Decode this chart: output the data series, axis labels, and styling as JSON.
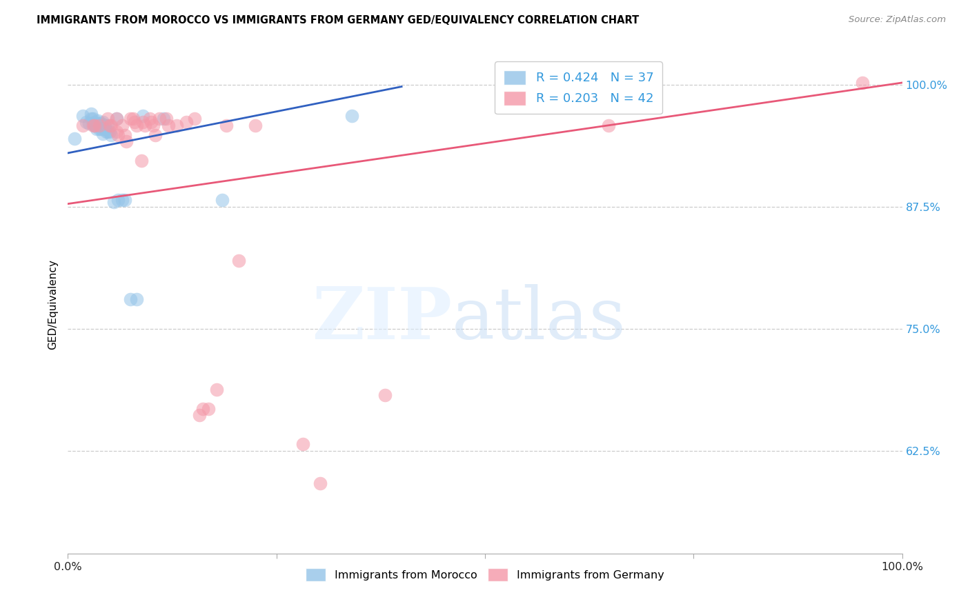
{
  "title": "IMMIGRANTS FROM MOROCCO VS IMMIGRANTS FROM GERMANY GED/EQUIVALENCY CORRELATION CHART",
  "source": "Source: ZipAtlas.com",
  "ylabel": "GED/Equivalency",
  "xlim": [
    0.0,
    1.0
  ],
  "ylim": [
    0.52,
    1.03
  ],
  "y_ticks": [
    0.625,
    0.75,
    0.875,
    1.0
  ],
  "y_tick_labels": [
    "62.5%",
    "75.0%",
    "87.5%",
    "100.0%"
  ],
  "legend": {
    "morocco_r": "0.424",
    "morocco_n": "37",
    "germany_r": "0.203",
    "germany_n": "42"
  },
  "morocco_color": "#94c4e8",
  "germany_color": "#f498a8",
  "morocco_line_color": "#3060c0",
  "germany_line_color": "#e85878",
  "morocco_x": [
    0.008,
    0.018,
    0.022,
    0.025,
    0.028,
    0.028,
    0.03,
    0.03,
    0.032,
    0.032,
    0.033,
    0.034,
    0.036,
    0.038,
    0.038,
    0.04,
    0.04,
    0.042,
    0.042,
    0.044,
    0.045,
    0.046,
    0.048,
    0.048,
    0.05,
    0.052,
    0.055,
    0.058,
    0.06,
    0.065,
    0.068,
    0.075,
    0.082,
    0.09,
    0.115,
    0.185,
    0.34
  ],
  "morocco_y": [
    0.945,
    0.968,
    0.962,
    0.96,
    0.97,
    0.965,
    0.965,
    0.96,
    0.962,
    0.958,
    0.958,
    0.955,
    0.963,
    0.96,
    0.955,
    0.96,
    0.955,
    0.962,
    0.95,
    0.958,
    0.955,
    0.952,
    0.958,
    0.952,
    0.952,
    0.948,
    0.88,
    0.965,
    0.882,
    0.882,
    0.882,
    0.78,
    0.78,
    0.968,
    0.965,
    0.882,
    0.968
  ],
  "germany_x": [
    0.018,
    0.03,
    0.032,
    0.038,
    0.048,
    0.05,
    0.052,
    0.058,
    0.058,
    0.06,
    0.065,
    0.068,
    0.07,
    0.075,
    0.078,
    0.08,
    0.082,
    0.088,
    0.09,
    0.092,
    0.098,
    0.1,
    0.102,
    0.105,
    0.11,
    0.118,
    0.12,
    0.13,
    0.142,
    0.152,
    0.158,
    0.162,
    0.168,
    0.178,
    0.19,
    0.205,
    0.225,
    0.282,
    0.302,
    0.38,
    0.648,
    0.952
  ],
  "germany_y": [
    0.958,
    0.958,
    0.958,
    0.958,
    0.965,
    0.958,
    0.958,
    0.965,
    0.952,
    0.948,
    0.958,
    0.948,
    0.942,
    0.965,
    0.965,
    0.962,
    0.958,
    0.922,
    0.962,
    0.958,
    0.965,
    0.962,
    0.958,
    0.948,
    0.965,
    0.965,
    0.958,
    0.958,
    0.962,
    0.965,
    0.662,
    0.668,
    0.668,
    0.688,
    0.958,
    0.82,
    0.958,
    0.632,
    0.592,
    0.682,
    0.958,
    1.002
  ],
  "morocco_trend_x": [
    0.0,
    0.4
  ],
  "morocco_trend_y": [
    0.93,
    0.998
  ],
  "germany_trend_x": [
    0.0,
    1.0
  ],
  "germany_trend_y": [
    0.878,
    1.002
  ]
}
